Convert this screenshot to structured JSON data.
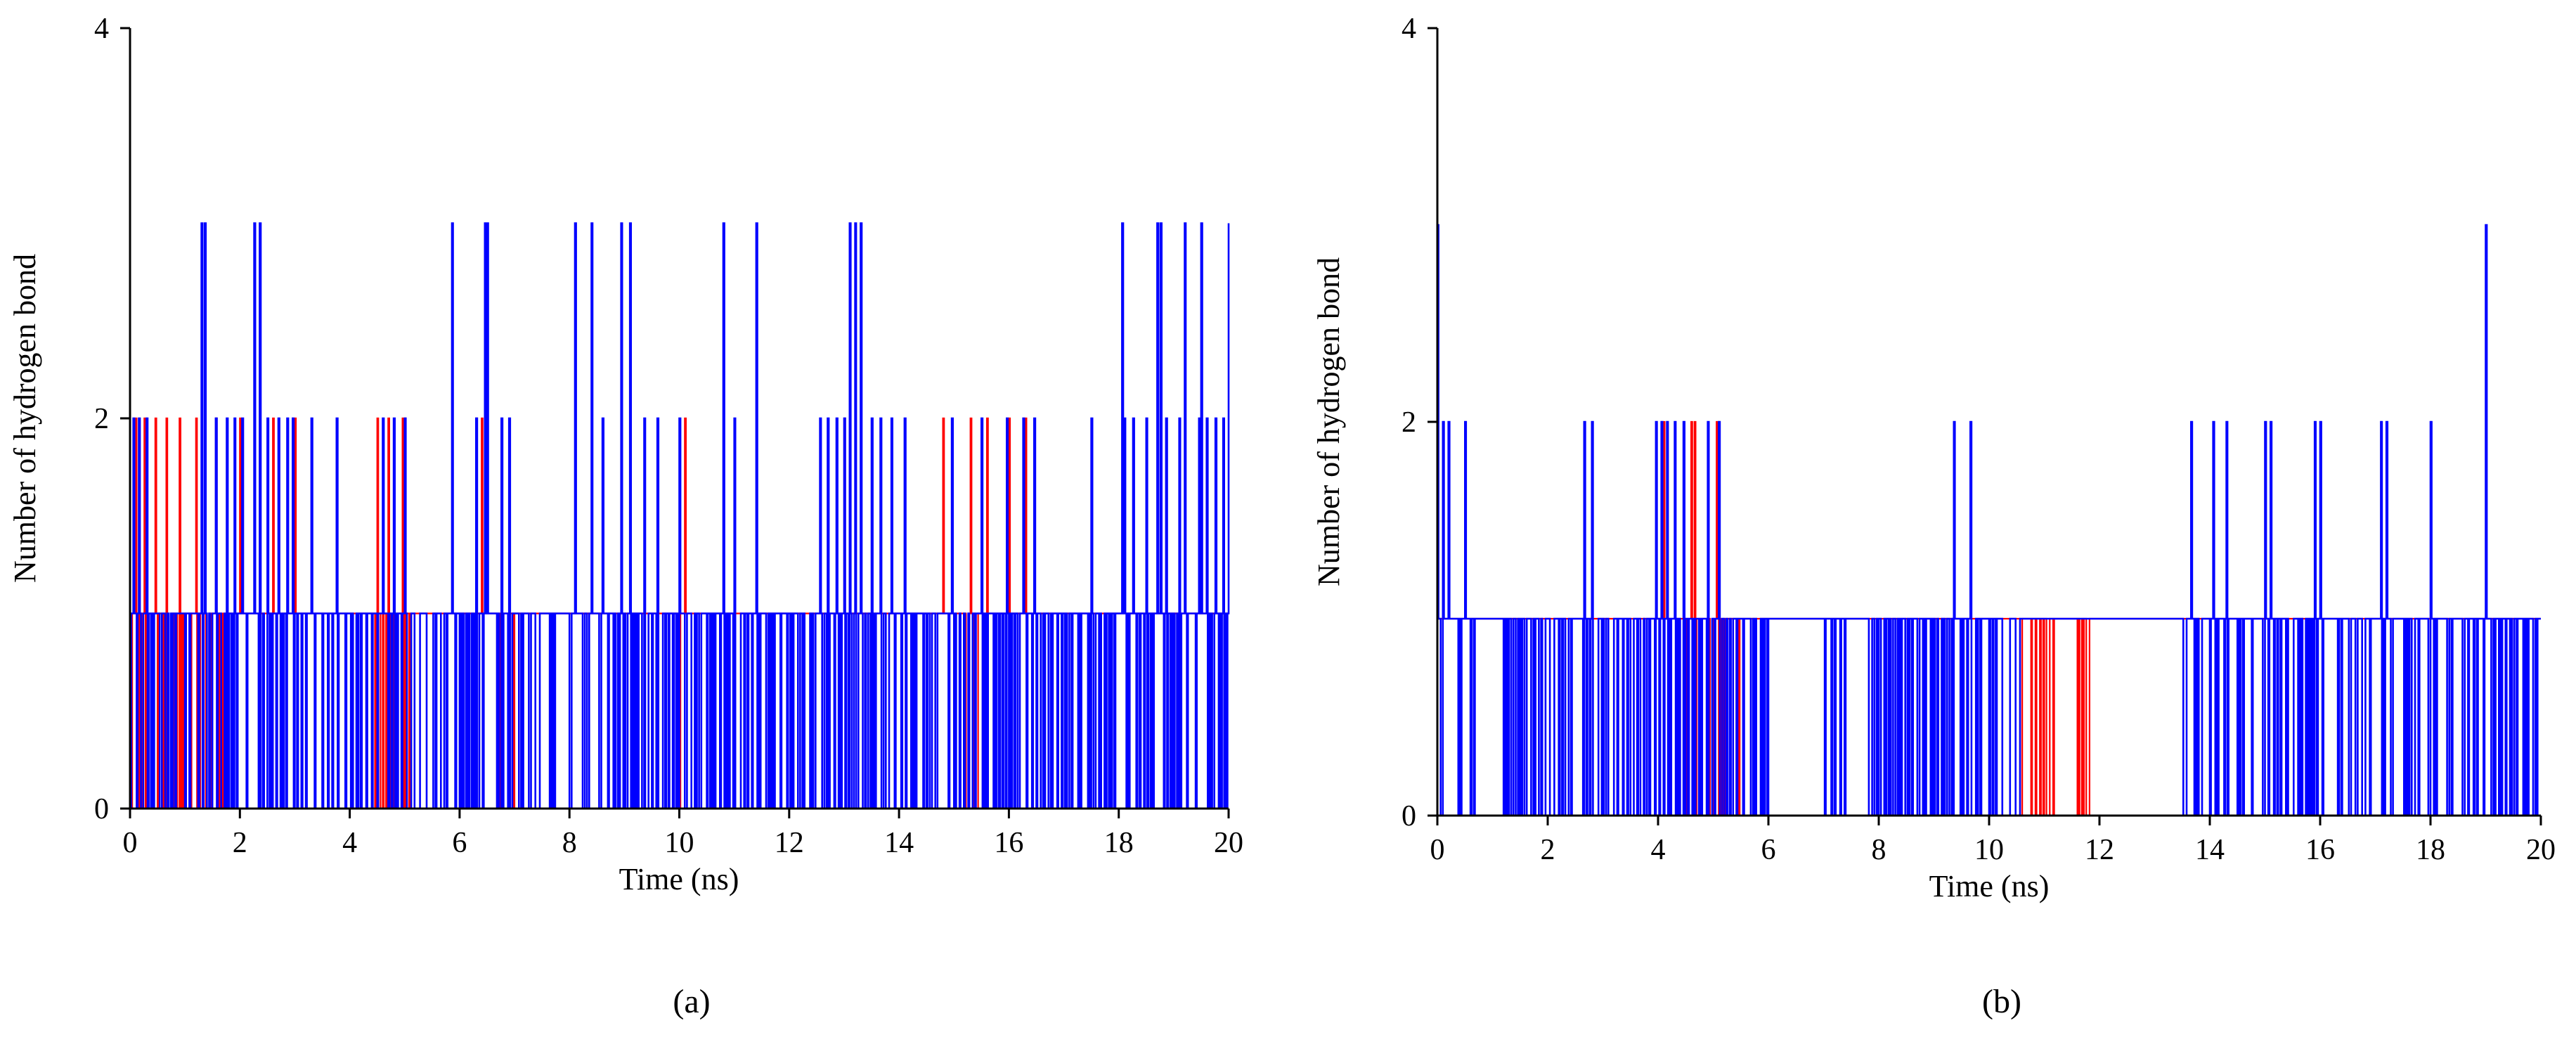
{
  "chart_data": [
    {
      "type": "line",
      "panel_label": "(a)",
      "xlabel": "Time (ns)",
      "ylabel": "Number of hydrogen bond",
      "xlim": [
        0,
        20
      ],
      "ylim": [
        0,
        4
      ],
      "xticks": [
        "0",
        "2",
        "4",
        "6",
        "8",
        "10",
        "12",
        "14",
        "16",
        "18",
        "20"
      ],
      "yticks": [
        "0",
        "2",
        "4"
      ],
      "grid": false,
      "colors": {
        "red_series": "#ff0000",
        "blue_series": "#0000ff"
      },
      "series": [
        {
          "color": "#ff0000",
          "seed": 11,
          "dense": [
            [
              0,
              1.8,
              0.7
            ],
            [
              4.3,
              5.1,
              0.8
            ],
            [
              6.6,
              7.0,
              0.5
            ],
            [
              10.0,
              10.6,
              0.4
            ],
            [
              15.2,
              15.6,
              0.5
            ]
          ],
          "spikes2": [
            0.1,
            0.25,
            0.45,
            0.65,
            0.9,
            1.2,
            1.55,
            2.0,
            2.6,
            3.0,
            4.5,
            4.7,
            4.95,
            5.0,
            6.3,
            6.4,
            10.1,
            13.0,
            14.8,
            15.3,
            15.6,
            16.0,
            16.3
          ],
          "spikes3": []
        },
        {
          "color": "#0000ff",
          "seed": 23,
          "dense": [
            [
              0,
              20,
              0.55
            ],
            [
              1.2,
              1.8,
              0.9
            ],
            [
              4.8,
              7.0,
              0.85
            ],
            [
              9.0,
              11.0,
              0.95
            ],
            [
              11.5,
              15.2,
              0.92
            ],
            [
              17.6,
              20,
              0.7
            ]
          ],
          "spikes2": [
            0.05,
            0.15,
            0.3,
            1.3,
            1.55,
            1.75,
            1.9,
            2.05,
            2.5,
            2.7,
            2.85,
            2.95,
            3.3,
            3.75,
            4.6,
            4.8,
            5.0,
            6.3,
            6.5,
            6.75,
            6.9,
            8.1,
            8.6,
            9.35,
            9.6,
            10.0,
            11.0,
            12.55,
            12.7,
            12.85,
            13.0,
            13.2,
            13.5,
            13.65,
            13.85,
            14.1,
            14.95,
            15.5,
            15.95,
            16.25,
            16.45,
            17.5,
            18.1,
            18.25,
            18.5,
            18.75,
            18.85,
            19.1,
            19.45,
            19.6,
            19.75,
            19.9
          ],
          "spikes3": [
            1.3,
            1.35,
            2.25,
            2.35,
            5.85,
            6.45,
            6.5,
            8.1,
            8.4,
            8.95,
            9.1,
            10.8,
            11.4,
            13.1,
            13.2,
            13.3,
            18.05,
            18.7,
            18.75,
            19.2,
            19.5,
            20.0
          ]
        }
      ]
    },
    {
      "type": "line",
      "panel_label": "(b)",
      "xlabel": "Time (ns)",
      "ylabel": "Number of hydrogen bond",
      "xlim": [
        0,
        20
      ],
      "ylim": [
        0,
        4
      ],
      "xticks": [
        "0",
        "2",
        "4",
        "6",
        "8",
        "10",
        "12",
        "14",
        "16",
        "18",
        "20"
      ],
      "yticks": [
        "0",
        "2",
        "4"
      ],
      "grid": false,
      "colors": {
        "red_series": "#ff0000",
        "blue_series": "#0000ff"
      },
      "series": [
        {
          "color": "#ff0000",
          "seed": 37,
          "dense": [
            [
              4.5,
              5.5,
              0.55
            ],
            [
              10.5,
              11.2,
              0.5
            ],
            [
              11.6,
              11.8,
              0.9
            ]
          ],
          "spikes2": [
            4.1,
            4.6,
            4.65,
            5.05
          ],
          "spikes3": []
        },
        {
          "color": "#0000ff",
          "seed": 41,
          "dense": [
            [
              0,
              0.8,
              0.5
            ],
            [
              1.2,
              6.0,
              0.85
            ],
            [
              7.0,
              7.4,
              0.7
            ],
            [
              7.8,
              10.6,
              0.85
            ],
            [
              13.5,
              20,
              0.55
            ]
          ],
          "spikes2": [
            0.1,
            0.2,
            0.5,
            2.65,
            2.8,
            3.95,
            4.05,
            4.15,
            4.3,
            4.45,
            4.9,
            5.1,
            9.35,
            9.65,
            13.65,
            14.05,
            14.3,
            15.0,
            15.1,
            15.9,
            16.0,
            17.1,
            17.2,
            18.0
          ],
          "spikes3": [
            0.0,
            19.0
          ]
        }
      ]
    }
  ]
}
